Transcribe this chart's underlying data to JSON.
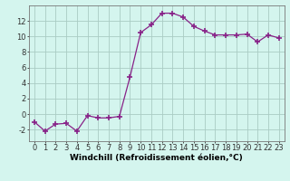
{
  "x": [
    0,
    1,
    2,
    3,
    4,
    5,
    6,
    7,
    8,
    9,
    10,
    11,
    12,
    13,
    14,
    15,
    16,
    17,
    18,
    19,
    20,
    21,
    22,
    23
  ],
  "y": [
    -1.0,
    -2.2,
    -1.3,
    -1.2,
    -2.2,
    -0.2,
    -0.5,
    -0.5,
    -0.3,
    4.8,
    10.5,
    11.5,
    13.0,
    13.0,
    12.5,
    11.3,
    10.7,
    10.2,
    10.2,
    10.2,
    10.3,
    9.3,
    10.2,
    9.8
  ],
  "line_color": "#882288",
  "marker": "+",
  "marker_size": 4,
  "bg_color": "#d4f5ee",
  "grid_color": "#aaccc4",
  "xlabel": "Windchill (Refroidissement éolien,°C)",
  "xlabel_fontsize": 6.5,
  "tick_fontsize": 6.0,
  "ylim": [
    -3.5,
    14.0
  ],
  "yticks": [
    -2,
    0,
    2,
    4,
    6,
    8,
    10,
    12
  ],
  "xticks": [
    0,
    1,
    2,
    3,
    4,
    5,
    6,
    7,
    8,
    9,
    10,
    11,
    12,
    13,
    14,
    15,
    16,
    17,
    18,
    19,
    20,
    21,
    22,
    23
  ]
}
